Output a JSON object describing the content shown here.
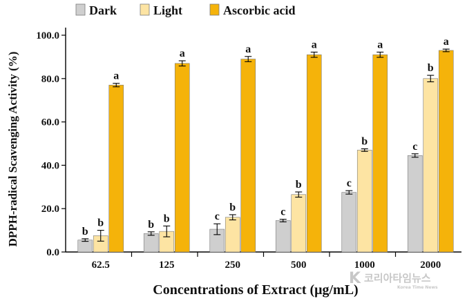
{
  "chart_data": {
    "type": "bar",
    "categories": [
      "62.5",
      "125",
      "250",
      "500",
      "1000",
      "2000"
    ],
    "series": [
      {
        "name": "Dark",
        "color": "#cfcfcf",
        "values": [
          5.5,
          8.5,
          10.5,
          14.5,
          27.5,
          44.5
        ],
        "errors": [
          0.6,
          0.8,
          2.5,
          0.6,
          0.8,
          0.8
        ],
        "letters": [
          "b",
          "b",
          "c",
          "c",
          "c",
          "c"
        ]
      },
      {
        "name": "Light",
        "color": "#fde4a3",
        "values": [
          7.5,
          9.5,
          16,
          26.5,
          47,
          80
        ],
        "errors": [
          2.5,
          2.5,
          1.2,
          1.2,
          0.6,
          1.5
        ],
        "letters": [
          "b",
          "b",
          "b",
          "b",
          "b",
          "b"
        ]
      },
      {
        "name": "Ascorbic acid",
        "color": "#f5b30a",
        "values": [
          77,
          87,
          89,
          91,
          91,
          93
        ],
        "errors": [
          0.8,
          1.2,
          1.2,
          1.2,
          1.2,
          0.6
        ],
        "letters": [
          "a",
          "a",
          "a",
          "a",
          "a",
          "a"
        ]
      }
    ],
    "yticks": [
      "0.0",
      "20.0",
      "40.0",
      "60.0",
      "80.0",
      "100.0"
    ],
    "ylim": [
      0,
      100
    ],
    "xlabel": "Concentrations of Extract (μg/mL)",
    "ylabel": "DPPH-radical Scavenging Activity (%)",
    "legend_position": "top",
    "grid": false
  },
  "watermark": {
    "text": "코리아타임뉴스",
    "sub": "Korea Time News"
  }
}
